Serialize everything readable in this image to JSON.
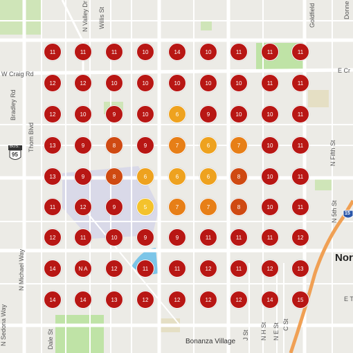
{
  "colors": {
    "high": "#b81714",
    "elevated": "#cf4a12",
    "moderate": "#e77f17",
    "low": "#eea21f",
    "lowest": "#f4c22c",
    "na": "#b81714"
  },
  "map": {
    "road_labels": {
      "w_craig": "W Craig Rd",
      "e_craig": "E Cr",
      "valley": "N Valley Dr",
      "willis": "Willis St",
      "bradley": "Bradley Rd",
      "thom": "Thom Blvd",
      "michael": "N Michael Way",
      "fifth_st": "N Fifth St",
      "fifth_st2": "N 5th St",
      "n_h_st": "N H St",
      "n_e_st": "N E St",
      "c_st": "C St",
      "j_st": "J St",
      "goldfield": "Goldfield",
      "donne": "Donne",
      "e_t": "E T",
      "bonanza": "Bonanza Village",
      "sedona": "N Sedona Way",
      "dale": "Dale St",
      "hwy_95_label": "BUS.",
      "hwy_95_num": "95",
      "i15_num": "15"
    },
    "city_label": "Nor"
  },
  "grid": [
    [
      "11",
      "11",
      "11",
      "10",
      "14",
      "10",
      "11",
      "11",
      "11"
    ],
    [
      "12",
      "12",
      "10",
      "10",
      "10",
      "10",
      "10",
      "11",
      "11"
    ],
    [
      "12",
      "10",
      "9",
      "10",
      "6",
      "9",
      "10",
      "10",
      "11"
    ],
    [
      "13",
      "9",
      "8",
      "9",
      "7",
      "6",
      "7",
      "10",
      "11"
    ],
    [
      "13",
      "9",
      "8",
      "6",
      "6",
      "6",
      "8",
      "10",
      "11"
    ],
    [
      "11",
      "12",
      "9",
      "5",
      "7",
      "7",
      "8",
      "10",
      "11"
    ],
    [
      "12",
      "11",
      "10",
      "9",
      "9",
      "11",
      "11",
      "11",
      "12"
    ],
    [
      "14",
      "N A",
      "12",
      "11",
      "11",
      "12",
      "11",
      "12",
      "13"
    ],
    [
      "14",
      "14",
      "13",
      "12",
      "12",
      "12",
      "12",
      "14",
      "15"
    ]
  ]
}
